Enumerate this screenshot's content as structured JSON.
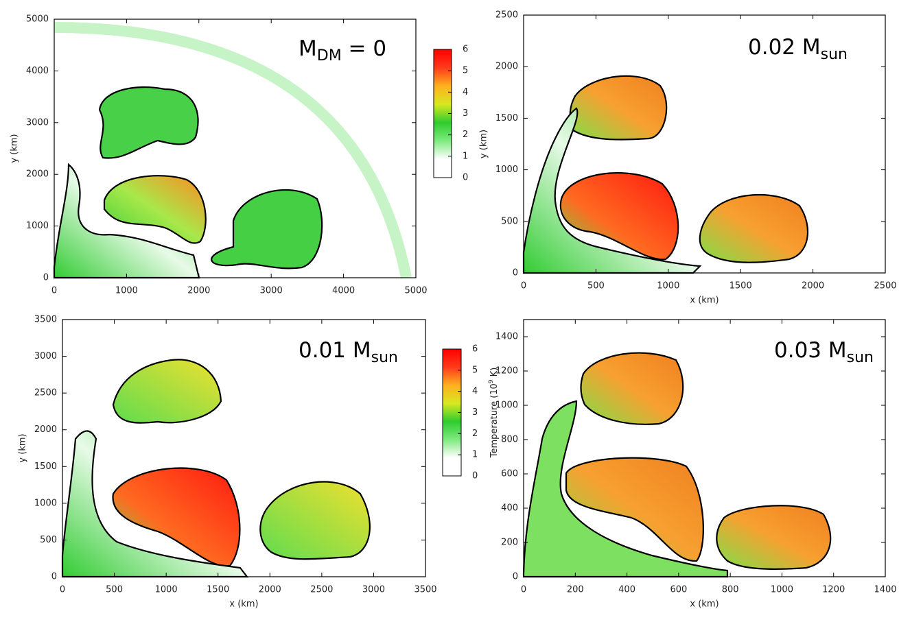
{
  "chart_data": [
    {
      "type": "heatmap",
      "ylabel": "y (km)",
      "xlim": [
        0,
        5000
      ],
      "ylim": [
        0,
        5000
      ],
      "xticks": [
        0,
        1000,
        2000,
        3000,
        4000,
        5000
      ],
      "yticks": [
        0,
        1000,
        2000,
        3000,
        4000,
        5000
      ],
      "annotation": {
        "main": "M",
        "sub": "DM",
        "rest": " = 0"
      },
      "colorbar": {
        "lim": [
          0,
          6
        ],
        "ticks": [
          0,
          1,
          2,
          3,
          4,
          5,
          6
        ],
        "colors": [
          "#ffffff",
          "#ffffff",
          "#7fea7f",
          "#2ecc2e",
          "#d8e820",
          "#ffb020",
          "#ff3a1a",
          "#ff0000"
        ]
      }
    },
    {
      "type": "heatmap",
      "xlabel": "x (km)",
      "ylabel": "y (km)",
      "xlim": [
        0,
        2500
      ],
      "ylim": [
        0,
        2500
      ],
      "xticks": [
        0,
        500,
        1000,
        1500,
        2000,
        2500
      ],
      "yticks": [
        0,
        500,
        1000,
        1500,
        2000,
        2500
      ],
      "annotation": {
        "main": "0.02 M",
        "sub": "sun"
      }
    },
    {
      "type": "heatmap",
      "xlabel": "x (km)",
      "ylabel": "y (km)",
      "xlim": [
        0,
        3500
      ],
      "ylim": [
        0,
        3500
      ],
      "xticks": [
        0,
        500,
        1000,
        1500,
        2000,
        2500,
        3000,
        3500
      ],
      "yticks": [
        0,
        500,
        1000,
        1500,
        2000,
        2500,
        3000,
        3500
      ],
      "annotation": {
        "main": "0.01 M",
        "sub": "sun"
      },
      "colorbar": {
        "lim": [
          0,
          6
        ],
        "ticks": [
          0,
          1,
          2,
          3,
          4,
          5,
          6
        ],
        "label": {
          "text": "Temperature (10",
          "sup": "9",
          "rest": " K)"
        },
        "colors": [
          "#ffffff",
          "#ffffff",
          "#7fea7f",
          "#2ecc2e",
          "#d8e820",
          "#ffb020",
          "#ff3a1a",
          "#ff0000"
        ]
      }
    },
    {
      "type": "heatmap",
      "xlabel": "x (km)",
      "xlim": [
        0,
        1400
      ],
      "ylim": [
        0,
        1500
      ],
      "xticks": [
        0,
        200,
        400,
        600,
        800,
        1000,
        1200,
        1400
      ],
      "yticks": [
        0,
        200,
        400,
        600,
        800,
        1000,
        1200,
        1400
      ],
      "annotation": {
        "main": "0.03 M",
        "sub": "sun"
      }
    }
  ]
}
